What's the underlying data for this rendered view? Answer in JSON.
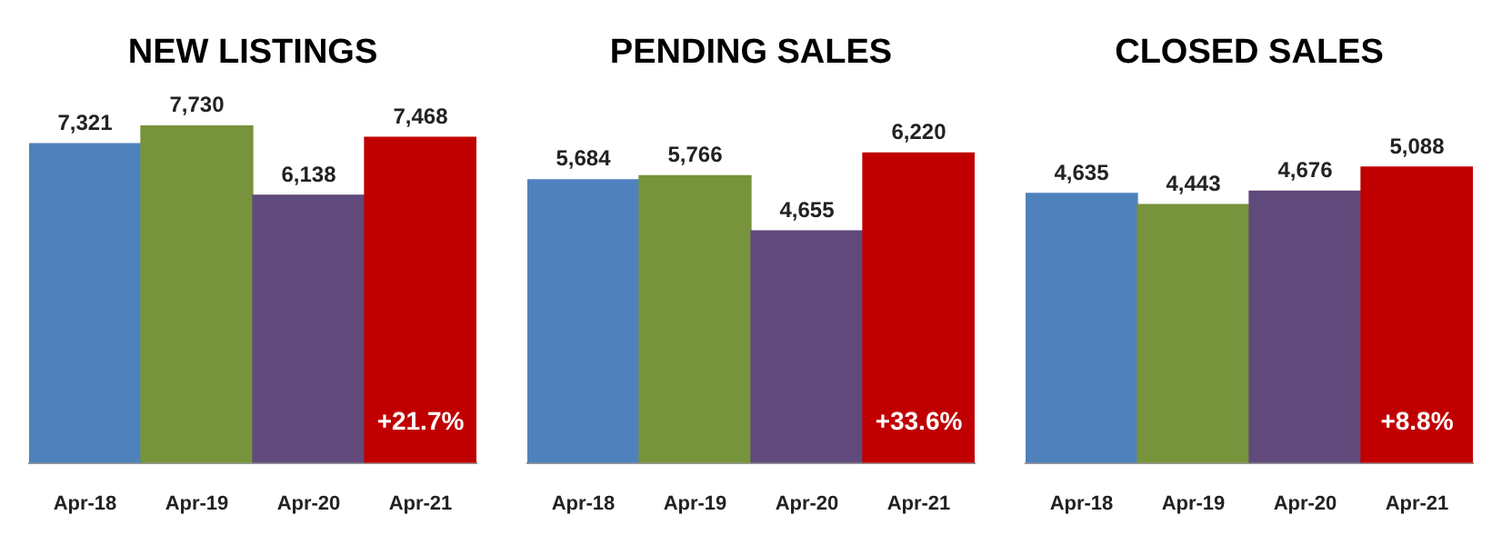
{
  "chart_data": [
    {
      "type": "bar",
      "title": "NEW LISTINGS",
      "categories": [
        "Apr-18",
        "Apr-19",
        "Apr-20",
        "Apr-21"
      ],
      "values": [
        7321,
        7730,
        6138,
        7468
      ],
      "colors": [
        "#4f81bd",
        "#77933c",
        "#604a7b",
        "#c00000"
      ],
      "value_labels": [
        "7,321",
        "7,730",
        "6,138",
        "7,468"
      ],
      "annotations": [
        "+21.7%"
      ]
    },
    {
      "type": "bar",
      "title": "PENDING SALES",
      "categories": [
        "Apr-18",
        "Apr-19",
        "Apr-20",
        "Apr-21"
      ],
      "values": [
        5684,
        5766,
        4655,
        6220
      ],
      "colors": [
        "#4f81bd",
        "#77933c",
        "#604a7b",
        "#c00000"
      ],
      "value_labels": [
        "5,684",
        "5,766",
        "4,655",
        "6,220"
      ],
      "annotations": [
        "+33.6%"
      ]
    },
    {
      "type": "bar",
      "title": "CLOSED SALES",
      "categories": [
        "Apr-18",
        "Apr-19",
        "Apr-20",
        "Apr-21"
      ],
      "values": [
        4635,
        4443,
        4676,
        5088
      ],
      "colors": [
        "#4f81bd",
        "#77933c",
        "#604a7b",
        "#c00000"
      ],
      "value_labels": [
        "4,635",
        "4,443",
        "4,676",
        "5,088"
      ],
      "annotations": [
        "+8.8%"
      ]
    }
  ]
}
